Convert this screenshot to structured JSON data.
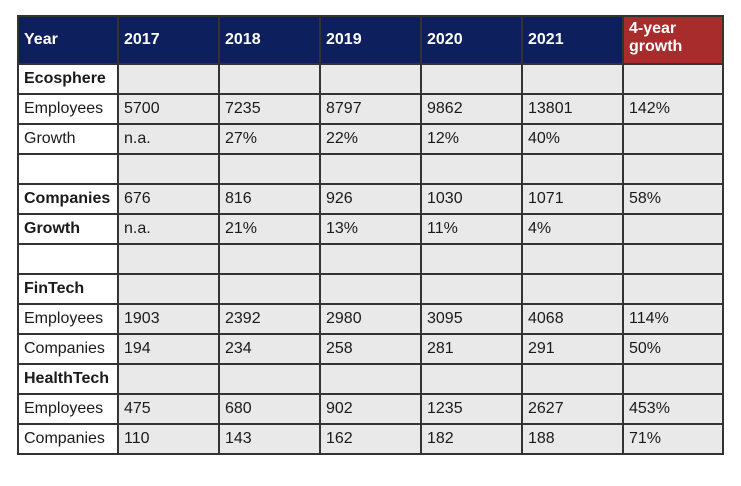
{
  "header": [
    "Year",
    "2017",
    "2018",
    "2019",
    "2020",
    "2021",
    "4-year growth"
  ],
  "rows": [
    {
      "cells": [
        "Ecosphere",
        "",
        "",
        "",
        "",
        "",
        ""
      ],
      "bold": true
    },
    {
      "cells": [
        "Employees",
        "5700",
        "7235",
        "8797",
        "9862",
        "13801",
        "142%"
      ],
      "bold": false
    },
    {
      "cells": [
        "Growth",
        "n.a.",
        "27%",
        "22%",
        "12%",
        "40%",
        ""
      ],
      "bold": false
    },
    {
      "cells": [
        "",
        "",
        "",
        "",
        "",
        "",
        ""
      ],
      "bold": false
    },
    {
      "cells": [
        "Companies",
        "676",
        "816",
        "926",
        "1030",
        "1071",
        "58%"
      ],
      "bold": true
    },
    {
      "cells": [
        "Growth",
        "n.a.",
        "21%",
        "13%",
        "11%",
        "4%",
        ""
      ],
      "bold": true
    },
    {
      "cells": [
        "",
        "",
        "",
        "",
        "",
        "",
        ""
      ],
      "bold": false
    },
    {
      "cells": [
        "FinTech",
        "",
        "",
        "",
        "",
        "",
        ""
      ],
      "bold": true
    },
    {
      "cells": [
        "Employees",
        "1903",
        "2392",
        "2980",
        "3095",
        "4068",
        "114%"
      ],
      "bold": false
    },
    {
      "cells": [
        "Companies",
        "194",
        "234",
        "258",
        "281",
        "291",
        "50%"
      ],
      "bold": false
    },
    {
      "cells": [
        "HealthTech",
        "",
        "",
        "",
        "",
        "",
        ""
      ],
      "bold": true
    },
    {
      "cells": [
        "Employees",
        "475",
        "680",
        "902",
        "1235",
        "2627",
        "453%"
      ],
      "bold": false
    },
    {
      "cells": [
        "Companies",
        "110",
        "143",
        "162",
        "182",
        "188",
        "71%"
      ],
      "bold": false
    }
  ]
}
